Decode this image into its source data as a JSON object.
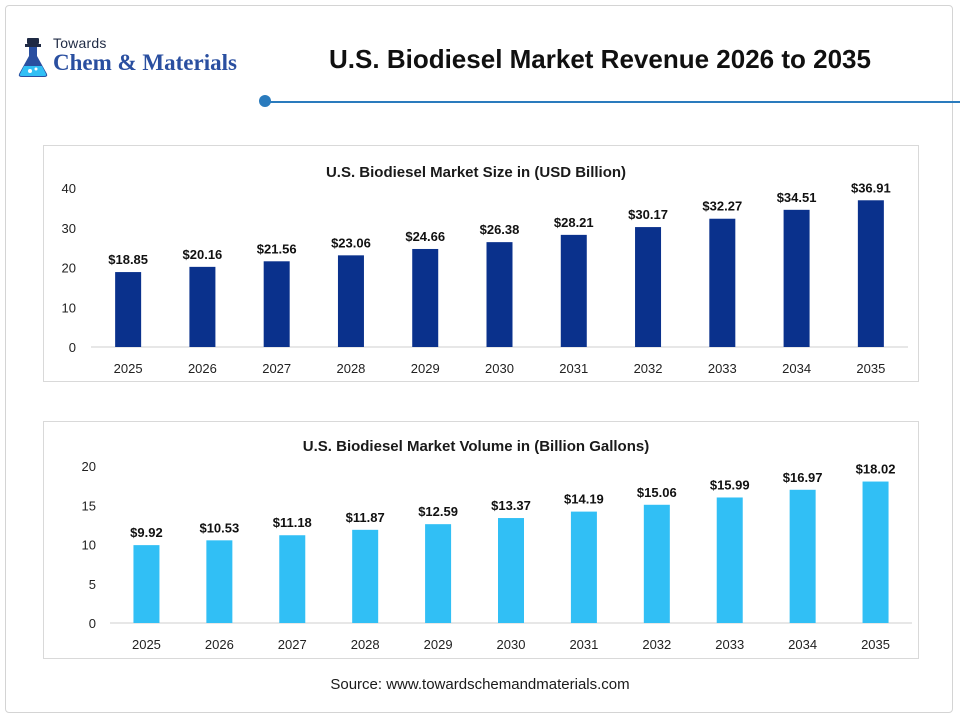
{
  "logo": {
    "line1": "Towards",
    "line2": "Chem & Materials"
  },
  "page_title": "U.S. Biodiesel Market Revenue 2026 to 2035",
  "source": "Source: www.towardschemandmaterials.com",
  "colors": {
    "chart1_bar": "#0a318c",
    "chart2_bar": "#31bff5",
    "accent": "#2a7bbd",
    "logo_blue": "#2a4fa0"
  },
  "chart_data": [
    {
      "type": "bar",
      "title": "U.S. Biodiesel Market Size in (USD Billion)",
      "xlabel": "",
      "ylabel": "",
      "categories": [
        "2025",
        "2026",
        "2027",
        "2028",
        "2029",
        "2030",
        "2031",
        "2032",
        "2033",
        "2034",
        "2035"
      ],
      "values": [
        18.85,
        20.16,
        21.56,
        23.06,
        24.66,
        26.38,
        28.21,
        30.17,
        32.27,
        34.51,
        36.91
      ],
      "labels": [
        "$18.85",
        "$20.16",
        "$21.56",
        "$23.06",
        "$24.66",
        "$26.38",
        "$28.21",
        "$30.17",
        "$32.27",
        "$34.51",
        "$36.91"
      ],
      "ylim": [
        0,
        40
      ],
      "yticks": [
        0,
        10,
        20,
        30,
        40
      ],
      "grid": false,
      "legend": "none"
    },
    {
      "type": "bar",
      "title": "U.S. Biodiesel Market Volume in (Billion Gallons)",
      "xlabel": "",
      "ylabel": "",
      "categories": [
        "2025",
        "2026",
        "2027",
        "2028",
        "2029",
        "2030",
        "2031",
        "2032",
        "2033",
        "2034",
        "2035"
      ],
      "values": [
        9.92,
        10.53,
        11.18,
        11.87,
        12.59,
        13.37,
        14.19,
        15.06,
        15.99,
        16.97,
        18.02
      ],
      "labels": [
        "$9.92",
        "$10.53",
        "$11.18",
        "$11.87",
        "$12.59",
        "$13.37",
        "$14.19",
        "$15.06",
        "$15.99",
        "$16.97",
        "$18.02"
      ],
      "ylim": [
        0,
        20
      ],
      "yticks": [
        0,
        5,
        10,
        15,
        20
      ],
      "grid": false,
      "legend": "none"
    }
  ]
}
